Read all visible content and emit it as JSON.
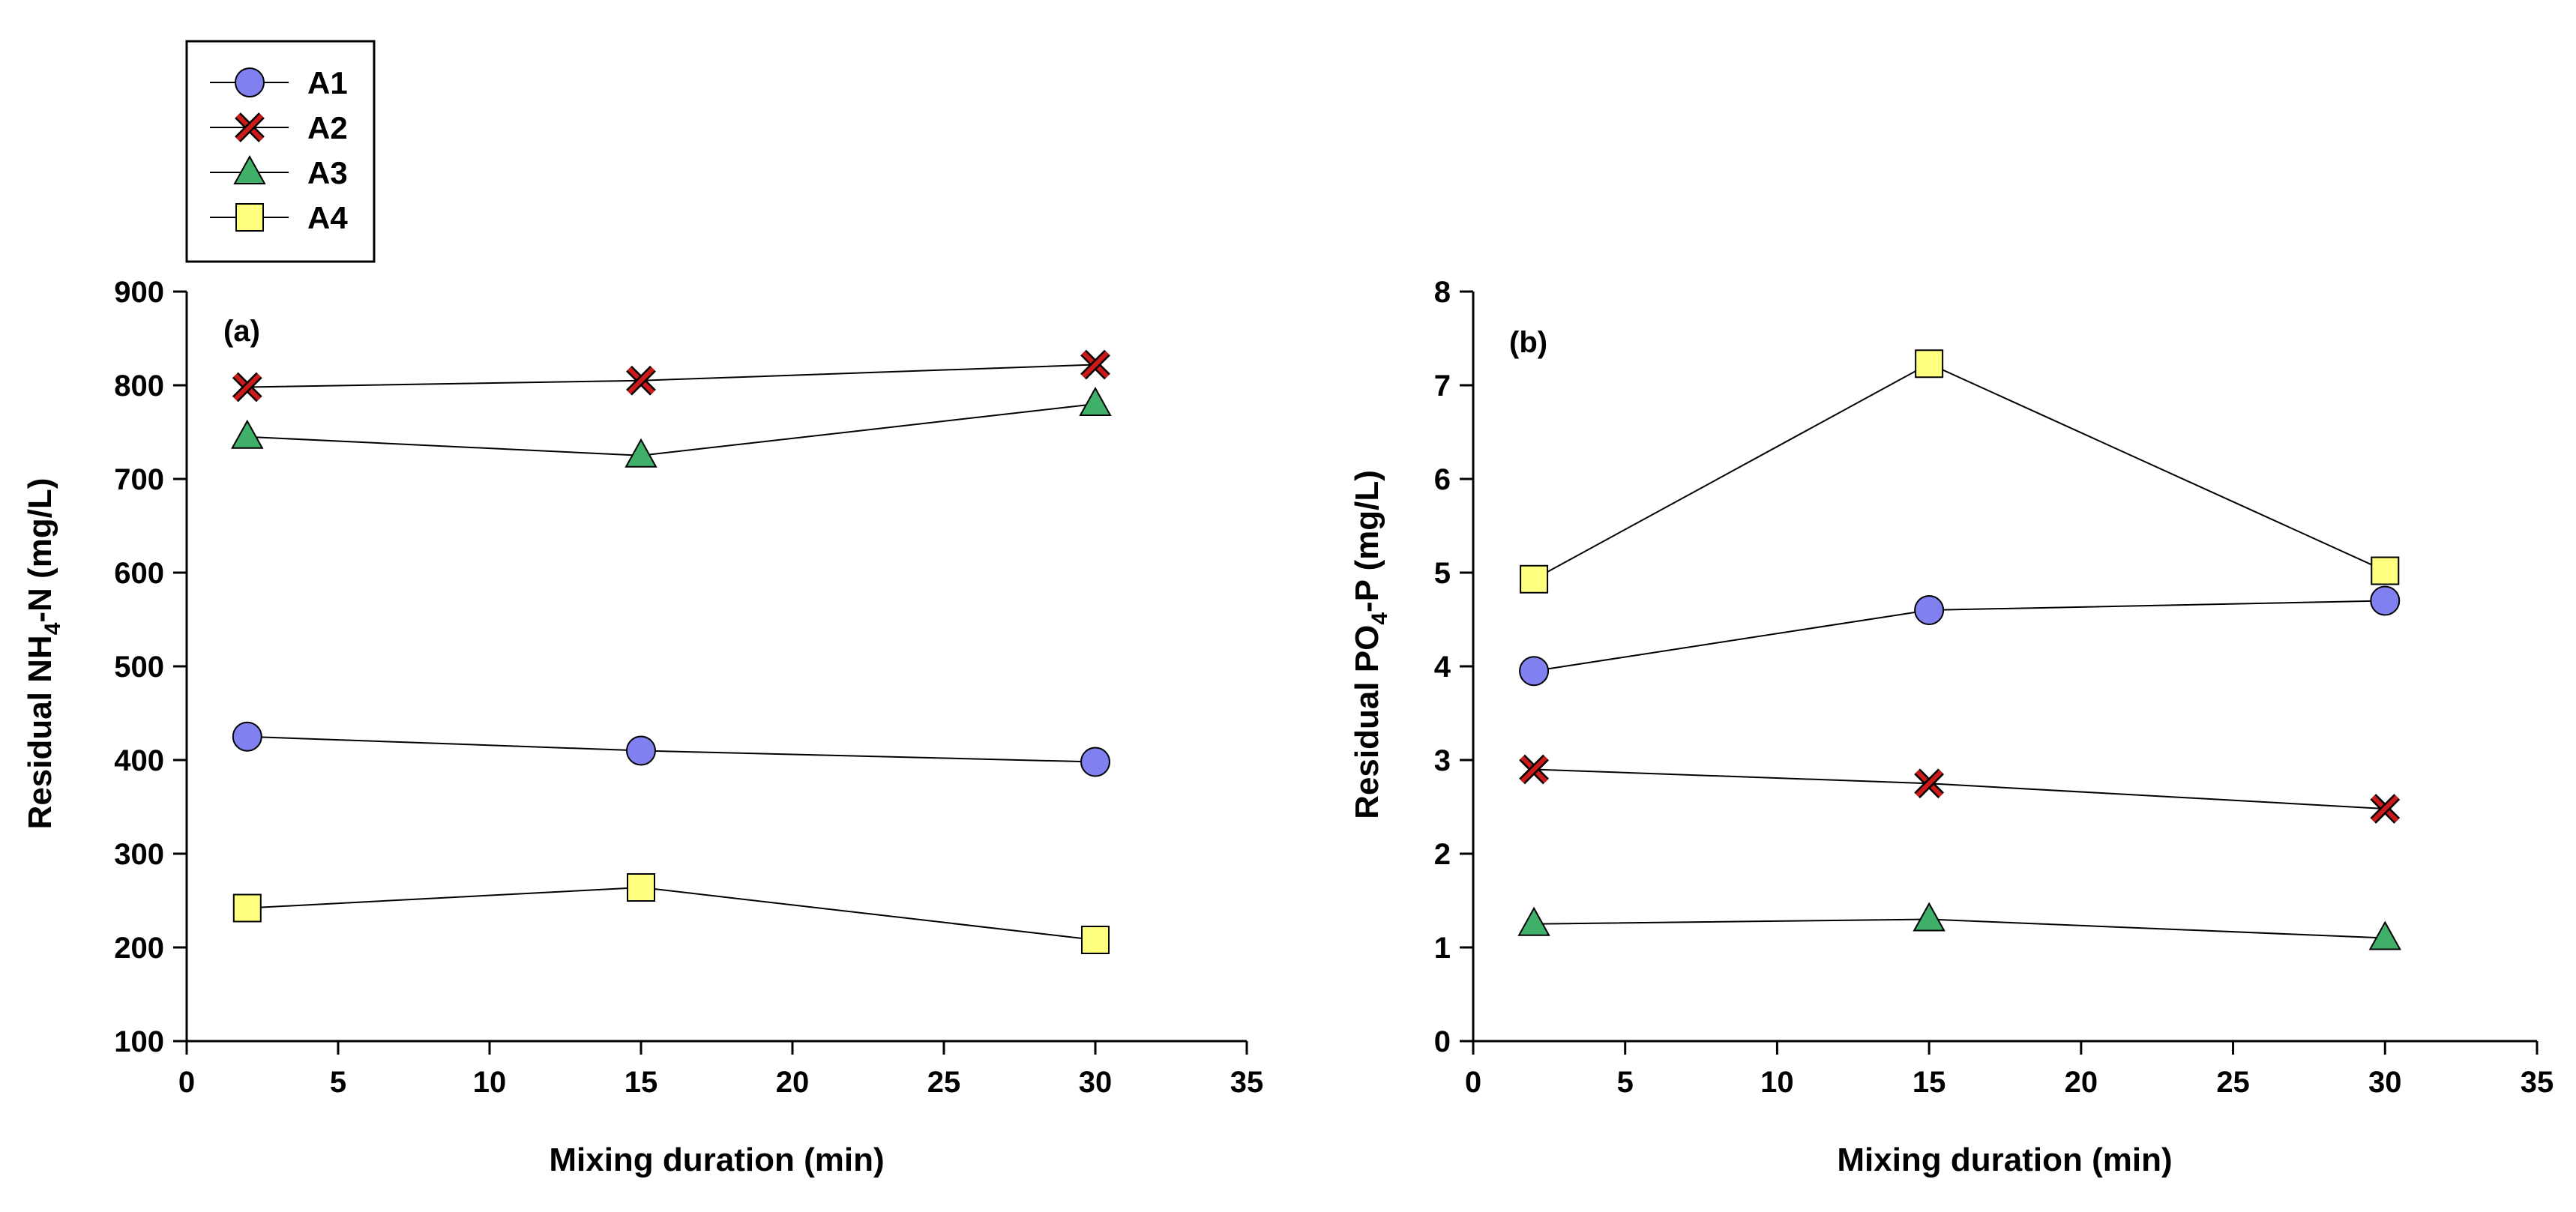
{
  "legend": {
    "entries": [
      {
        "name": "A1",
        "marker": "circle-icon",
        "color": "#8080F0"
      },
      {
        "name": "A2",
        "marker": "x-cross-icon",
        "color": "#CC1A1A"
      },
      {
        "name": "A3",
        "marker": "triangle-icon",
        "color": "#3FAF6A"
      },
      {
        "name": "A4",
        "marker": "square-icon",
        "color": "#FFFF80"
      }
    ]
  },
  "chart_data": [
    {
      "type": "line",
      "panel_label": "(a)",
      "title": "",
      "xlabel": "Mixing duration (min)",
      "ylabel_prefix": "Residual NH",
      "ylabel_sub": "4",
      "ylabel_suffix": "-N (mg/L)",
      "xlim": [
        0,
        35
      ],
      "ylim": [
        100,
        900
      ],
      "xticks": [
        0,
        5,
        10,
        15,
        20,
        25,
        30,
        35
      ],
      "yticks": [
        100,
        200,
        300,
        400,
        500,
        600,
        700,
        800,
        900
      ],
      "x": [
        2,
        15,
        30
      ],
      "series": [
        {
          "name": "A1",
          "values": [
            425,
            410,
            398
          ]
        },
        {
          "name": "A2",
          "values": [
            798,
            805,
            822
          ]
        },
        {
          "name": "A3",
          "values": [
            745,
            725,
            780
          ]
        },
        {
          "name": "A4",
          "values": [
            242,
            264,
            208
          ]
        }
      ]
    },
    {
      "type": "line",
      "panel_label": "(b)",
      "title": "",
      "xlabel": "Mixing duration (min)",
      "ylabel_prefix": "Residual PO",
      "ylabel_sub": "4",
      "ylabel_suffix": "-P (mg/L)",
      "xlim": [
        0,
        35
      ],
      "ylim": [
        0,
        8
      ],
      "xticks": [
        0,
        5,
        10,
        15,
        20,
        25,
        30,
        35
      ],
      "yticks": [
        0,
        1,
        2,
        3,
        4,
        5,
        6,
        7,
        8
      ],
      "x": [
        2,
        15,
        30
      ],
      "series": [
        {
          "name": "A1",
          "values": [
            3.95,
            4.6,
            4.7
          ]
        },
        {
          "name": "A2",
          "values": [
            2.9,
            2.75,
            2.48
          ]
        },
        {
          "name": "A3",
          "values": [
            1.25,
            1.3,
            1.1
          ]
        },
        {
          "name": "A4",
          "values": [
            4.93,
            7.23,
            5.02
          ]
        }
      ]
    }
  ]
}
